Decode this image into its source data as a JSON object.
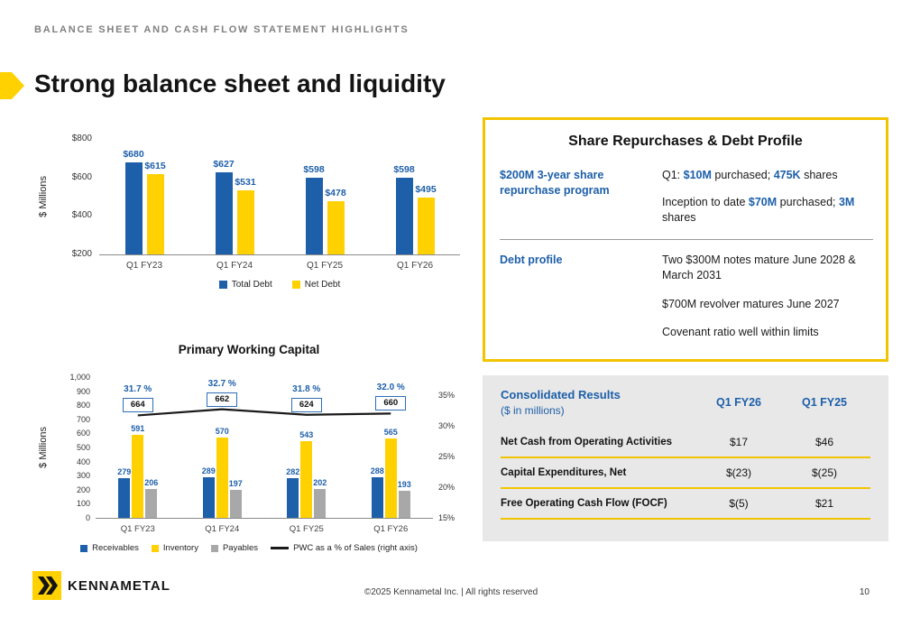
{
  "slide": {
    "kicker": "BALANCE SHEET AND CASH FLOW STATEMENT HIGHLIGHTS",
    "title": "Strong balance sheet and liquidity",
    "footer": "©2025 Kennametal Inc.  |  All rights reserved",
    "page_number": "10",
    "logo_text": "KENNAMETAL"
  },
  "colors": {
    "blue": "#1D5FA9",
    "yellow": "#FFD100",
    "gray_bar": "#A8A8A8",
    "line_black": "#1A1A1A",
    "accent_border": "#F2C400",
    "panel_gray": "#E8E8E8"
  },
  "chart_data": [
    {
      "type": "bar",
      "id": "debt_chart",
      "title": "",
      "xlabel": "",
      "ylabel": "$ Millions",
      "ylim": [
        200,
        800
      ],
      "yticks": [
        "$800",
        "$600",
        "$400",
        "$200"
      ],
      "categories": [
        "Q1 FY23",
        "Q1 FY24",
        "Q1 FY25",
        "Q1 FY26"
      ],
      "series": [
        {
          "name": "Total Debt",
          "color": "#1D5FA9",
          "values": [
            680,
            627,
            598,
            598
          ],
          "labels": [
            "$680",
            "$627",
            "$598",
            "$598"
          ]
        },
        {
          "name": "Net Debt",
          "color": "#FFD100",
          "values": [
            615,
            531,
            478,
            495
          ],
          "labels": [
            "$615",
            "$531",
            "$478",
            "$495"
          ]
        }
      ],
      "legend_position": "bottom",
      "grid": false
    },
    {
      "type": "bar-line",
      "id": "pwc_chart",
      "title": "Primary Working Capital",
      "xlabel": "",
      "ylabel": "$ Millions",
      "ylim": [
        0,
        1000
      ],
      "yticks": [
        "1,000",
        "900",
        "800",
        "700",
        "600",
        "500",
        "400",
        "300",
        "200",
        "100",
        "0"
      ],
      "y2lim": [
        15,
        35
      ],
      "y2ticks": [
        "35%",
        "30%",
        "25%",
        "20%",
        "15%"
      ],
      "categories": [
        "Q1 FY23",
        "Q1 FY24",
        "Q1 FY25",
        "Q1 FY26"
      ],
      "series": [
        {
          "name": "Receivables",
          "color": "#1D5FA9",
          "values": [
            279,
            289,
            282,
            288
          ]
        },
        {
          "name": "Inventory",
          "color": "#FFD100",
          "values": [
            591,
            570,
            543,
            565
          ]
        },
        {
          "name": "Payables",
          "color": "#A8A8A8",
          "values": [
            206,
            197,
            202,
            193
          ]
        }
      ],
      "totals": [
        "664",
        "662",
        "624",
        "660"
      ],
      "line_series": {
        "name": "PWC as a % of Sales (right axis)",
        "color": "#1A1A1A",
        "values": [
          31.7,
          32.7,
          31.8,
          32.0
        ],
        "labels": [
          "31.7 %",
          "32.7 %",
          "31.8 %",
          "32.0 %"
        ]
      },
      "legend_position": "bottom",
      "grid": false
    }
  ],
  "repurchase_panel": {
    "title": "Share Repurchases & Debt Profile",
    "sections": [
      {
        "label": "$200M 3-year share repurchase program",
        "paragraphs": [
          "Q1: **$10M** purchased; **475K** shares",
          "Inception to date **$70M** purchased; **3M** shares"
        ]
      },
      {
        "label": "Debt profile",
        "paragraphs": [
          "Two $300M notes mature June 2028 & March 2031",
          "$700M revolver matures June 2027",
          "Covenant ratio well within limits"
        ]
      }
    ]
  },
  "consolidated_panel": {
    "title": "Consolidated Results",
    "subtitle": "($ in millions)",
    "columns": [
      "Q1 FY26",
      "Q1 FY25"
    ],
    "rows": [
      {
        "label": "Net Cash from Operating Activities",
        "values": [
          "$17",
          "$46"
        ]
      },
      {
        "label": "Capital Expenditures, Net",
        "values": [
          "$(23)",
          "$(25)"
        ]
      },
      {
        "label": "Free Operating Cash Flow  (FOCF)",
        "values": [
          "$(5)",
          "$21"
        ]
      }
    ]
  }
}
